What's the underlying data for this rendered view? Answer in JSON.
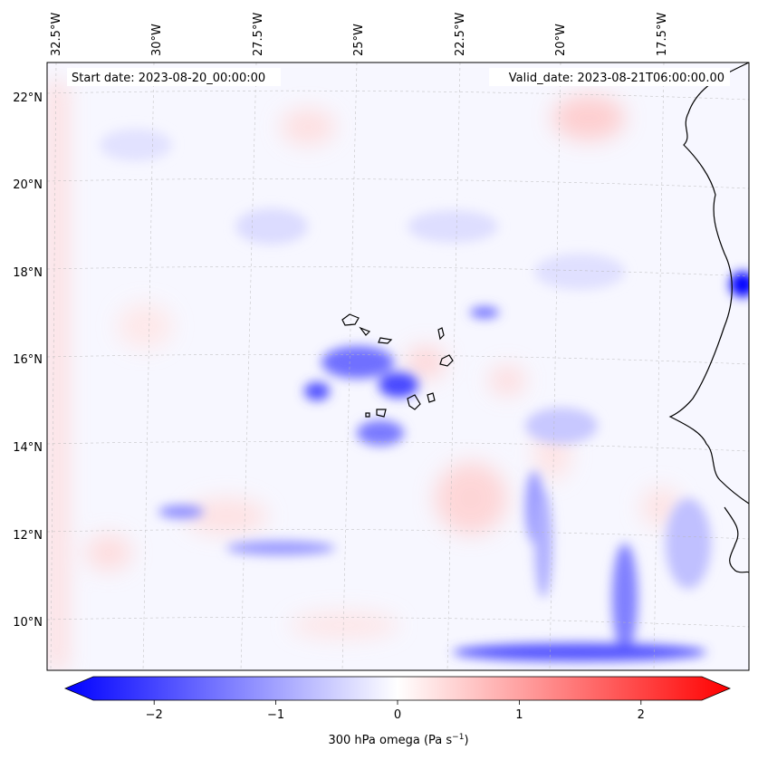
{
  "map": {
    "start_date": "Start date: 2023-08-20_00:00:00",
    "valid_date": "Valid_date: 2023-08-21T06:00:00.00",
    "lon_labels": [
      "32.5°W",
      "30°W",
      "27.5°W",
      "25°W",
      "22.5°W",
      "20°W",
      "17.5°W"
    ],
    "lat_labels": [
      "22°N",
      "20°N",
      "18°N",
      "16°N",
      "14°N",
      "12°N",
      "10°N"
    ],
    "field": "300 hPa omega",
    "palette": {
      "negative": "#0000ff",
      "zero": "#ffffff",
      "positive": "#ff0000",
      "coast": "#000000"
    }
  },
  "colorbar": {
    "ticks": [
      "−2",
      "−1",
      "0",
      "1",
      "2"
    ],
    "label_main": "300 hPa omega (Pa s",
    "label_sup": "−1",
    "label_close": ")",
    "range": [
      -2.6,
      2.6
    ]
  }
}
